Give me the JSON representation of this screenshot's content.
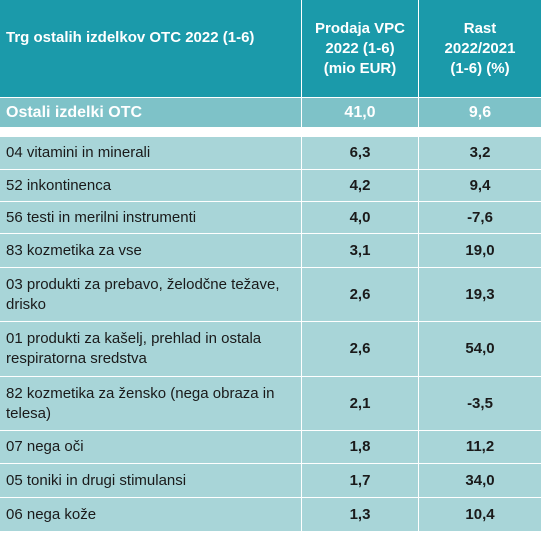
{
  "header": {
    "col1": "Trg ostalih izdelkov OTC 2022 (1-6)",
    "col2": "Prodaja VPC 2022 (1-6) (mio EUR)",
    "col3": "Rast 2022/2021 (1-6) (%)"
  },
  "summary": {
    "label": "Ostali izdelki OTC",
    "sales": "41,0",
    "growth": "9,6"
  },
  "rows": [
    {
      "label": "04 vitamini in minerali",
      "sales": "6,3",
      "growth": "3,2"
    },
    {
      "label": "52 inkontinenca",
      "sales": "4,2",
      "growth": "9,4"
    },
    {
      "label": "56 testi in merilni instrumenti",
      "sales": "4,0",
      "growth": "-7,6"
    },
    {
      "label": "83 kozmetika za vse",
      "sales": "3,1",
      "growth": "19,0"
    },
    {
      "label": "03 produkti za prebavo, želodčne težave, drisko",
      "sales": "2,6",
      "growth": "19,3"
    },
    {
      "label": "01 produkti za kašelj, prehlad in ostala respiratorna sredstva",
      "sales": "2,6",
      "growth": "54,0"
    },
    {
      "label": "82 kozmetika za žensko (nega obraza in telesa)",
      "sales": "2,1",
      "growth": "-3,5"
    },
    {
      "label": "07 nega oči",
      "sales": "1,8",
      "growth": "11,2"
    },
    {
      "label": "05 toniki in drugi stimulansi",
      "sales": "1,7",
      "growth": "34,0"
    },
    {
      "label": "06 nega kože",
      "sales": "1,3",
      "growth": "10,4"
    }
  ],
  "colors": {
    "header": "#1b9aaa",
    "summary": "#7ec2c8",
    "data": "#a8d5d8"
  }
}
